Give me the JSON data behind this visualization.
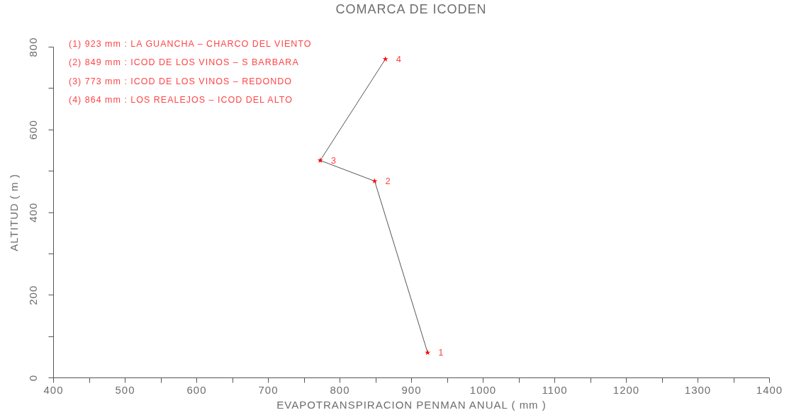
{
  "chart_data": {
    "type": "line",
    "title": "COMARCA DE ICODEN",
    "xlabel": "EVAPOTRANSPIRACION PENMAN ANUAL ( mm )",
    "ylabel": "ALTITUD ( m )",
    "x": [
      923,
      849,
      773,
      864
    ],
    "series": [
      {
        "type": "line",
        "color": "#555555",
        "marker": "none",
        "values": [
          60,
          475,
          525,
          770
        ]
      },
      {
        "type": "scatter",
        "color": "#ff0000",
        "values": [
          60,
          475,
          525,
          770
        ]
      }
    ],
    "marker": "star",
    "xlim": [
      400,
      1400
    ],
    "xticks": [
      400,
      {
        "value": 450,
        "label": null
      },
      500,
      {
        "value": 550,
        "label": null
      },
      600,
      {
        "value": 650,
        "label": null
      },
      700,
      {
        "value": 750,
        "label": null
      },
      800,
      {
        "value": 850,
        "label": null
      },
      900,
      {
        "value": 950,
        "label": null
      },
      1000,
      {
        "value": 1050,
        "label": null
      },
      1100,
      {
        "value": 1150,
        "label": null
      },
      1200,
      {
        "value": 1250,
        "label": null
      },
      1300,
      {
        "value": 1350,
        "label": null
      },
      1400
    ],
    "ylim": [
      0,
      800
    ],
    "yticks": [
      0,
      {
        "value": 100,
        "label": null
      },
      200,
      {
        "value": 300,
        "label": null
      },
      400,
      {
        "value": 500,
        "label": null
      },
      600,
      {
        "value": 700,
        "label": null
      },
      800
    ],
    "annotations": [
      "(1) 923 mm : LA GUANCHA – CHARCO DEL VIENTO",
      "(2) 849 mm : ICOD DE LOS VINOS – S BARBARA",
      "(3) 773 mm : ICOD DE LOS VINOS – REDONDO",
      "(4) 864 mm : LOS REALEJOS – ICOD DEL ALTO",
      {
        "text": "1",
        "x": 923,
        "y": 60
      },
      {
        "text": "2",
        "x": 849,
        "y": 475
      },
      {
        "text": "3",
        "x": 773,
        "y": 525
      },
      {
        "text": "4",
        "x": 864,
        "y": 770
      }
    ]
  }
}
